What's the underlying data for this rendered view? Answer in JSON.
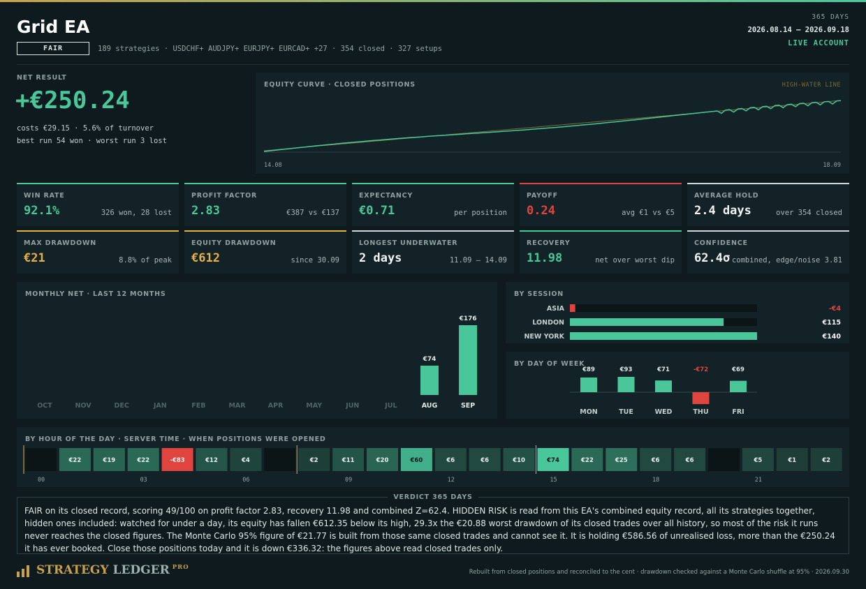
{
  "header": {
    "title": "Grid EA",
    "grade": "FAIR",
    "subtitle": "189 strategies · USDCHF+ AUDJPY+ EURJPY+ EURCAD+ +27 · 354 closed · 327 setups",
    "period_days": "365 DAYS",
    "period_range": "2026.08.14 – 2026.09.18",
    "account": "LIVE ACCOUNT"
  },
  "net": {
    "label": "NET RESULT",
    "value": "+€250.24",
    "costs": "costs €29.15 · 5.6% of turnover",
    "runs": "best run 54 won · worst run 3 lost"
  },
  "equity": {
    "title": "EQUITY CURVE · CLOSED POSITIONS",
    "hwl_label": "HIGH-WATER LINE",
    "start_label": "14.08",
    "end_label": "18.09",
    "line_color": "#49c79b",
    "hwl_color": "#7e6a33"
  },
  "cards": [
    {
      "label": "WIN RATE",
      "value": "92.1%",
      "note": "326 won, 28 lost",
      "tone": "green",
      "border": "green"
    },
    {
      "label": "PROFIT FACTOR",
      "value": "2.83",
      "note": "€387 vs €137",
      "tone": "green",
      "border": "green"
    },
    {
      "label": "EXPECTANCY",
      "value": "€0.71",
      "note": "per position",
      "tone": "green",
      "border": "green"
    },
    {
      "label": "PAYOFF",
      "value": "0.24",
      "note": "avg €1 vs €5",
      "tone": "red",
      "border": "red"
    },
    {
      "label": "AVERAGE HOLD",
      "value": "2.4 days",
      "note": "over 354 closed",
      "tone": "white",
      "border": "white"
    },
    {
      "label": "MAX DRAWDOWN",
      "value": "€21",
      "note": "8.8% of peak",
      "tone": "amber",
      "border": "amber"
    },
    {
      "label": "EQUITY DRAWDOWN",
      "value": "€612",
      "note": "since 30.09",
      "tone": "amber",
      "border": "amber"
    },
    {
      "label": "LONGEST UNDERWATER",
      "value": "2 days",
      "note": "11.09 – 14.09",
      "tone": "white",
      "border": "white"
    },
    {
      "label": "RECOVERY",
      "value": "11.98",
      "note": "net over worst dip",
      "tone": "green",
      "border": "green"
    },
    {
      "label": "CONFIDENCE",
      "value": "62.4σ",
      "note": "combined, edge/noise 3.81",
      "tone": "white",
      "border": "white"
    }
  ],
  "chart_data": [
    {
      "type": "bar",
      "title": "MONTHLY NET · LAST 12 MONTHS",
      "categories": [
        "OCT",
        "NOV",
        "DEC",
        "JAN",
        "FEB",
        "MAR",
        "APR",
        "MAY",
        "JUN",
        "JUL",
        "AUG",
        "SEP"
      ],
      "values": [
        null,
        null,
        null,
        null,
        null,
        null,
        null,
        null,
        null,
        null,
        74,
        176
      ],
      "labels": [
        "",
        "",
        "",
        "",
        "",
        "",
        "",
        "",
        "",
        "",
        "€74",
        "€176"
      ],
      "ylim": [
        0,
        176
      ]
    },
    {
      "type": "bar",
      "orientation": "horizontal",
      "title": "BY SESSION",
      "categories": [
        "ASIA",
        "LONDON",
        "NEW YORK"
      ],
      "values": [
        -4,
        115,
        140
      ],
      "labels": [
        "-€4",
        "€115",
        "€140"
      ],
      "xlim": [
        0,
        140
      ]
    },
    {
      "type": "bar",
      "title": "BY DAY OF WEEK",
      "categories": [
        "MON",
        "TUE",
        "WED",
        "THU",
        "FRI"
      ],
      "values": [
        89,
        93,
        71,
        -72,
        69
      ],
      "labels": [
        "€89",
        "€93",
        "€71",
        "-€72",
        "€69"
      ]
    },
    {
      "type": "heatmap",
      "title": "BY HOUR OF THE DAY · SERVER TIME · WHEN POSITIONS WERE OPENED",
      "x": [
        0,
        1,
        2,
        3,
        4,
        5,
        6,
        7,
        8,
        9,
        10,
        11,
        12,
        13,
        14,
        15,
        16,
        17,
        18,
        19,
        20,
        21,
        22,
        23
      ],
      "values": [
        null,
        22,
        19,
        22,
        -83,
        12,
        4,
        null,
        2,
        11,
        20,
        60,
        6,
        6,
        10,
        74,
        22,
        25,
        6,
        6,
        null,
        5,
        1,
        2
      ],
      "labels": [
        "",
        "€22",
        "€19",
        "€22",
        "-€83",
        "€12",
        "€4",
        "",
        "€2",
        "€11",
        "€20",
        "€60",
        "€6",
        "€6",
        "€10",
        "€74",
        "€22",
        "€25",
        "€6",
        "€6",
        "",
        "€5",
        "€1",
        "€2"
      ],
      "tick_labels": [
        "00",
        "03",
        "06",
        "09",
        "12",
        "15",
        "18",
        "21"
      ],
      "session_markers": [
        0,
        8,
        15
      ]
    }
  ],
  "verdict": {
    "title": "VERDICT  365 DAYS",
    "text": "FAIR on its closed record, scoring 49/100 on profit factor 2.83, recovery 11.98 and combined Z=62.4. HIDDEN RISK is read from this EA's combined equity record, all its strategies together, hidden ones included: watched for under a day, its equity has fallen €612.35 below its high, 29.3x the €20.88 worst drawdown of its closed trades over all history, so most of the risk it runs never reaches the closed figures. The Monte Carlo 95% figure of €21.77 is built from those same closed trades and cannot see it. It is holding €586.56 of unrealised loss, more than the €250.24 it has ever booked. Close those positions today and it is down €336.32: the figures above read closed trades only."
  },
  "footer": {
    "brand_part1": "STRATEGY",
    "brand_part2": "LEDGER",
    "brand_pro": "PRO",
    "note": "Rebuilt from closed positions and reconciled to the cent · drawdown checked against a Monte Carlo shuffle at 95% · 2026.09.30"
  },
  "colors": {
    "positive": "#49c79b",
    "negative": "#e0443e",
    "amber": "#e3b14a",
    "track": "#0b1517"
  }
}
